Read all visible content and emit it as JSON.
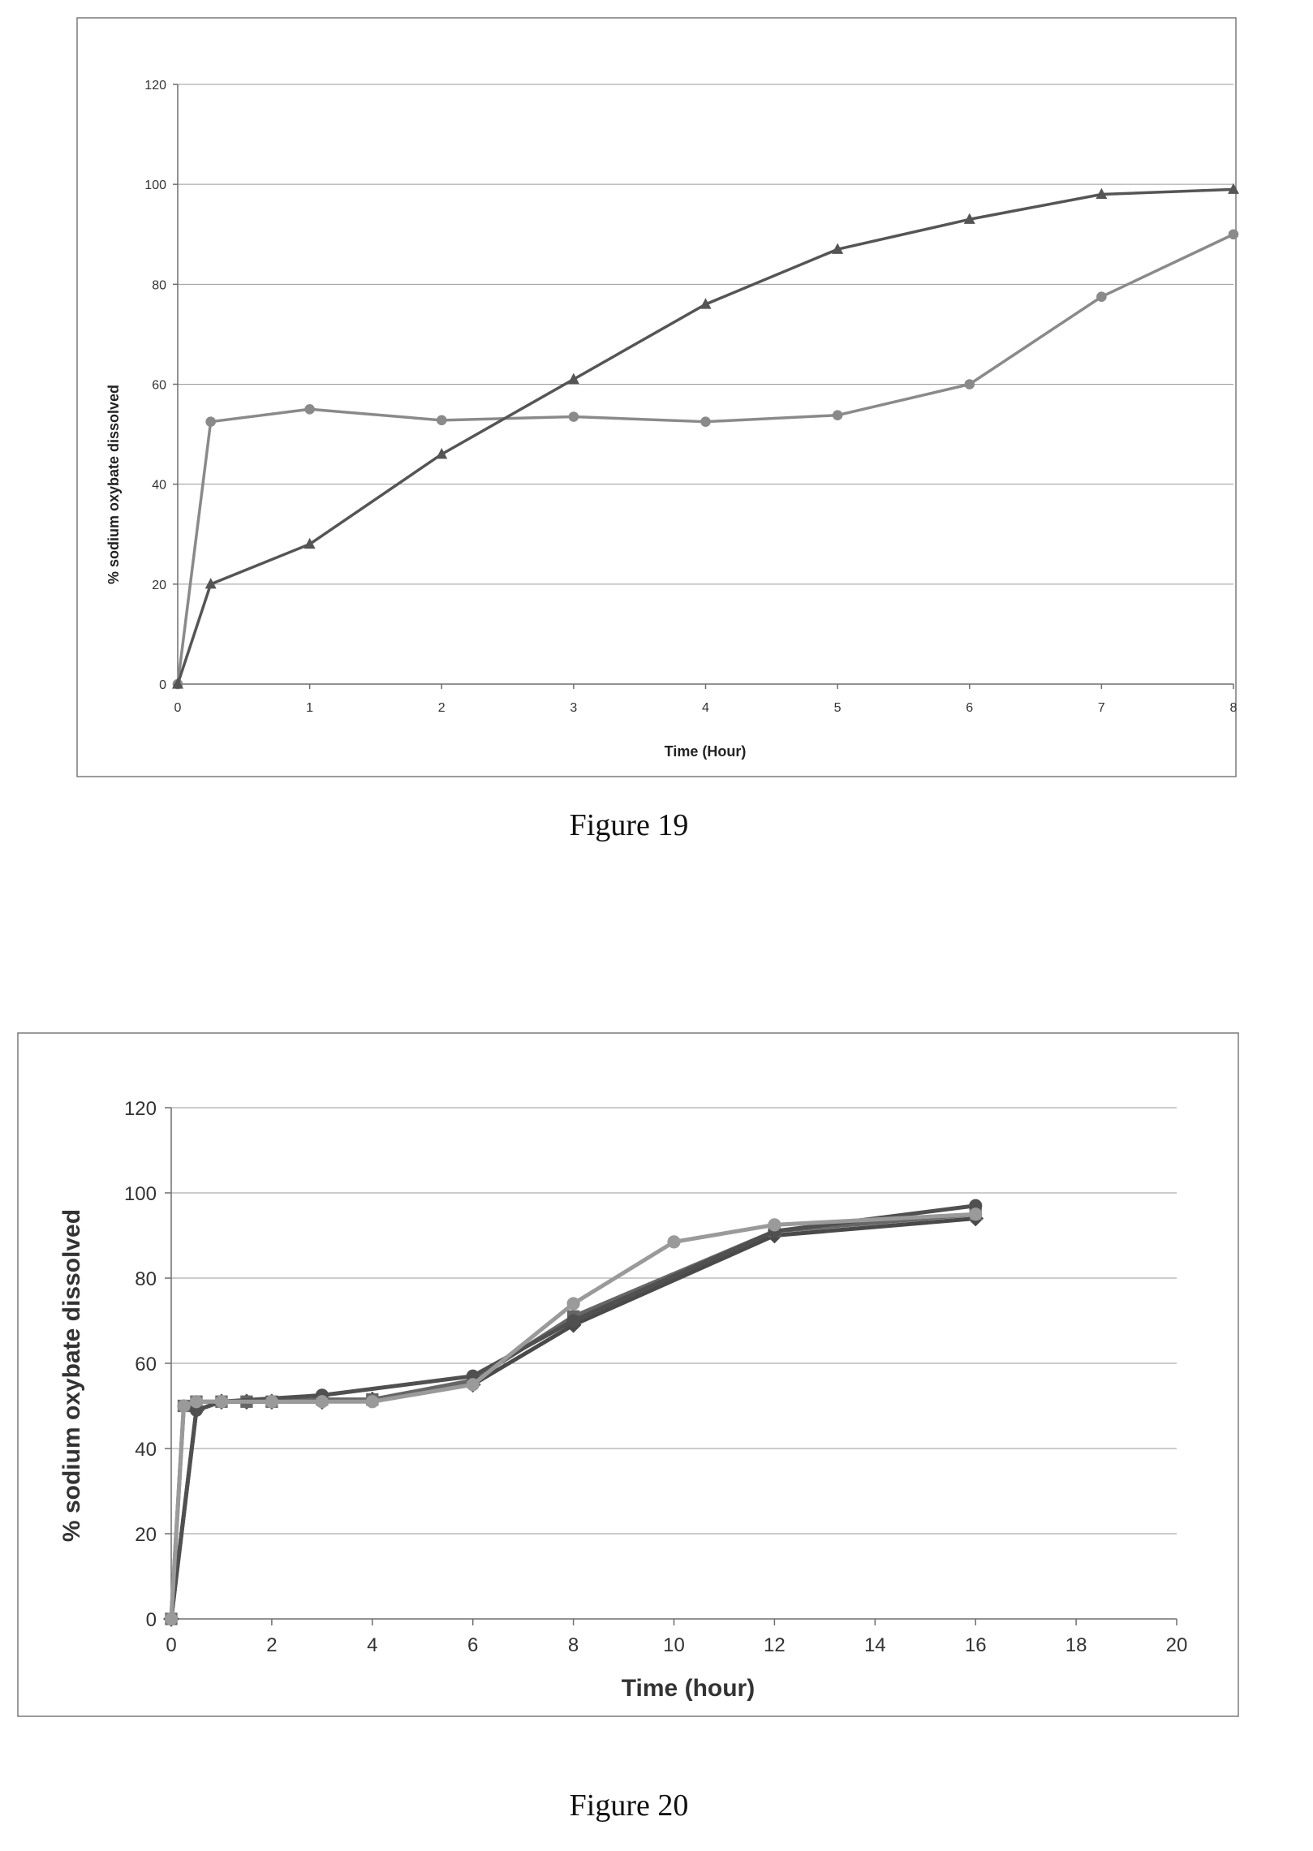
{
  "chart_data": [
    {
      "type": "line",
      "caption": "Figure 19",
      "xlabel": "Time (Hour)",
      "ylabel": "% sodium oxybate dissolved",
      "xlim": [
        0,
        8
      ],
      "ylim": [
        0,
        120
      ],
      "x_ticks": [
        0,
        1,
        2,
        3,
        4,
        5,
        6,
        7,
        8
      ],
      "y_ticks": [
        0,
        20,
        40,
        60,
        80,
        100,
        120
      ],
      "grid": "horizontal",
      "legend": "none",
      "series": [
        {
          "marker": "circle",
          "color": "#8a8a8a",
          "points": [
            [
              0,
              0
            ],
            [
              0.25,
              52.5
            ],
            [
              1,
              55
            ],
            [
              2,
              52.8
            ],
            [
              3,
              53.5
            ],
            [
              4,
              52.5
            ],
            [
              5,
              53.8
            ],
            [
              6,
              60
            ],
            [
              7,
              77.5
            ],
            [
              8,
              90
            ]
          ]
        },
        {
          "marker": "triangle",
          "color": "#555555",
          "points": [
            [
              0,
              0
            ],
            [
              0.25,
              20
            ],
            [
              1,
              28
            ],
            [
              2,
              46
            ],
            [
              3,
              61
            ],
            [
              4,
              76
            ],
            [
              5,
              87
            ],
            [
              6,
              93
            ],
            [
              7,
              98
            ],
            [
              8,
              99
            ]
          ]
        }
      ]
    },
    {
      "type": "line",
      "caption": "Figure 20",
      "xlabel": "Time (hour)",
      "ylabel": "% sodium oxybate dissolved",
      "xlim": [
        0,
        20
      ],
      "ylim": [
        0,
        120
      ],
      "x_ticks": [
        0,
        2,
        4,
        6,
        8,
        10,
        12,
        14,
        16,
        18,
        20
      ],
      "y_ticks": [
        0,
        20,
        40,
        60,
        80,
        100,
        120
      ],
      "grid": "horizontal",
      "legend": "none",
      "series": [
        {
          "marker": "diamond",
          "color": "#4a4a4a",
          "points": [
            [
              0,
              0
            ],
            [
              0.5,
              49
            ],
            [
              1,
              51
            ],
            [
              1.5,
              51
            ],
            [
              2,
              51
            ],
            [
              3,
              51
            ],
            [
              4,
              51.5
            ],
            [
              6,
              55
            ],
            [
              8,
              69
            ],
            [
              12,
              90
            ],
            [
              16,
              94
            ]
          ]
        },
        {
          "marker": "square",
          "color": "#666666",
          "points": [
            [
              0,
              0
            ],
            [
              0.25,
              50
            ],
            [
              0.5,
              51
            ],
            [
              1,
              51
            ],
            [
              1.5,
              51
            ],
            [
              2,
              51
            ],
            [
              3,
              51.5
            ],
            [
              4,
              51.5
            ],
            [
              6,
              56
            ],
            [
              8,
              71
            ],
            [
              12,
              91
            ],
            [
              16,
              95
            ]
          ]
        },
        {
          "marker": "circle",
          "color": "#505050",
          "points": [
            [
              0,
              0
            ],
            [
              0.5,
              49
            ],
            [
              1,
              51
            ],
            [
              3,
              52.5
            ],
            [
              6,
              57
            ],
            [
              8,
              70
            ],
            [
              12,
              91
            ],
            [
              16,
              97
            ]
          ]
        },
        {
          "marker": "circle",
          "color": "#9a9a9a",
          "points": [
            [
              0,
              0
            ],
            [
              0.25,
              50
            ],
            [
              0.5,
              51
            ],
            [
              1,
              51
            ],
            [
              2,
              51
            ],
            [
              3,
              51
            ],
            [
              4,
              51
            ],
            [
              6,
              55
            ],
            [
              8,
              74
            ],
            [
              10,
              88.5
            ],
            [
              12,
              92.5
            ],
            [
              16,
              95
            ]
          ]
        }
      ]
    }
  ]
}
